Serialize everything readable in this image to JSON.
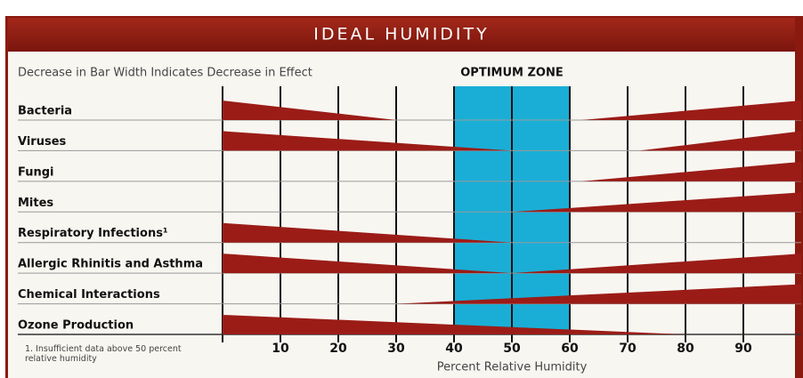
{
  "chart_data": {
    "type": "wedge",
    "title": "IDEAL HUMIDITY",
    "annotation": "Decrease in Bar Width Indicates Decrease in Effect",
    "zone_label": "OPTIMUM ZONE",
    "optimum_zone": [
      40,
      60
    ],
    "xlabel": "Percent Relative Humidity",
    "footnote": "1. Insufficient data above 50 percent relative humidity",
    "categories": [
      "Bacteria",
      "Viruses",
      "Fungi",
      "Mites",
      "Respiratory Infections¹",
      "Allergic Rhinitis and Asthma",
      "Chemical Interactions",
      "Ozone Production"
    ],
    "decrease_to": [
      30,
      50,
      null,
      null,
      50,
      50,
      null,
      80
    ],
    "increase_from": [
      62,
      72,
      62,
      50,
      null,
      50,
      30,
      null
    ],
    "color": "#9b1c17",
    "zone_color": "#1aaed6",
    "xlim": [
      0,
      100
    ],
    "xticks": [
      10,
      20,
      30,
      40,
      50,
      60,
      70,
      80,
      90
    ]
  }
}
